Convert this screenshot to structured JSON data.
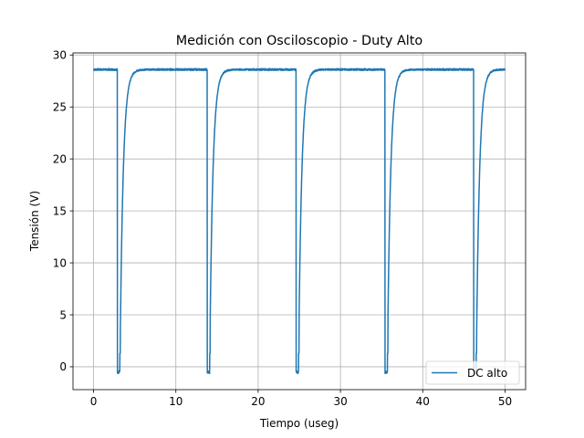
{
  "chart_data": {
    "type": "line",
    "title": "Medición con Osciloscopio - Duty Alto",
    "xlabel": "Tiempo (useg)",
    "ylabel": "Tensión (V)",
    "xlim": [
      -2.5,
      52.5
    ],
    "ylim": [
      -2.2,
      30.2
    ],
    "xticks": [
      0,
      10,
      20,
      30,
      40,
      50
    ],
    "yticks": [
      0,
      5,
      10,
      15,
      20,
      25,
      30
    ],
    "grid": true,
    "legend_position": "bottom-right",
    "series": [
      {
        "name": "DC alto",
        "color": "#1f77b4",
        "high_level": 28.6,
        "low_level": -0.5,
        "drops": [
          {
            "t_fall": 2.9,
            "t_rise": 3.2
          },
          {
            "t_fall": 13.8,
            "t_rise": 14.1
          },
          {
            "t_fall": 24.6,
            "t_rise": 24.9
          },
          {
            "t_fall": 35.4,
            "t_rise": 35.7
          },
          {
            "t_fall": 46.2,
            "t_rise": 46.5
          }
        ],
        "x_start": 0,
        "x_end": 50
      }
    ]
  }
}
